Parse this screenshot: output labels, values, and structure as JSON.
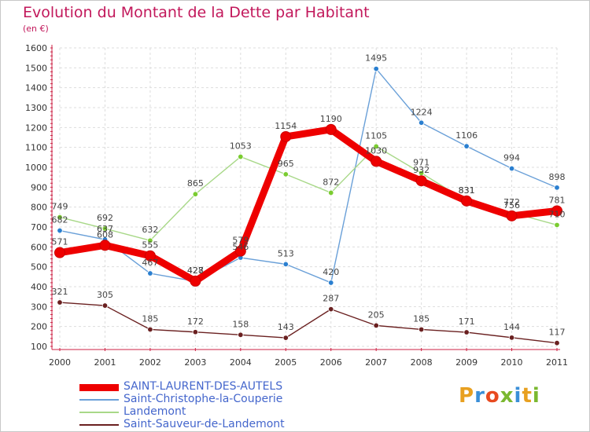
{
  "title": "Evolution du Montant de la Dette par Habitant",
  "unit": "(en €)",
  "logo": "Proxiti",
  "logo_colors": [
    "#e8a020",
    "#3a8fd8",
    "#e84a20",
    "#7ab830",
    "#3a8fd8",
    "#e8a020",
    "#7ab830"
  ],
  "chart_data": {
    "type": "line",
    "title": "Evolution du Montant de la Dette par Habitant",
    "ylabel": "(en €)",
    "xlabel": "",
    "x": [
      "2000",
      "2001",
      "2002",
      "2003",
      "2004",
      "2005",
      "2006",
      "2007",
      "2008",
      "2009",
      "2010",
      "2011"
    ],
    "ylim": [
      100,
      1600
    ],
    "yticks": [
      "100",
      "200",
      "300",
      "400",
      "500",
      "600",
      "700",
      "800",
      "900",
      "1000",
      "1100",
      "1200",
      "1300",
      "1400",
      "1500",
      "1600"
    ],
    "grid": true,
    "legend_position": "bottom-left",
    "series": [
      {
        "name": "SAINT-LAURENT-DES-AUTELS",
        "color": "#ee0000",
        "marker": "#ee0000",
        "bold": true,
        "values": [
          571,
          608,
          555,
          428,
          579,
          1154,
          1190,
          1030,
          932,
          831,
          756,
          781
        ],
        "labels": [
          "571",
          "608",
          "555",
          "428",
          "579",
          "1154",
          "1190",
          "1030",
          "932",
          "831",
          "756",
          "781"
        ]
      },
      {
        "name": "Saint-Christophe-la-Couperie",
        "color": "#6aa0d8",
        "marker": "#2a7fd0",
        "bold": false,
        "values": [
          682,
          637,
          467,
          427,
          546,
          513,
          420,
          1495,
          1224,
          1106,
          994,
          898
        ],
        "labels": [
          "682",
          "637",
          "467",
          "427",
          "546",
          "513",
          "420",
          "1495",
          "1224",
          "1106",
          "994",
          "898"
        ]
      },
      {
        "name": "Landemont",
        "color": "#a8d888",
        "marker": "#7acc30",
        "bold": false,
        "values": [
          749,
          692,
          632,
          865,
          1053,
          965,
          872,
          1105,
          971,
          831,
          772,
          710
        ],
        "labels": [
          "749",
          "692",
          "632",
          "865",
          "1053",
          "965",
          "872",
          "1105",
          "971",
          "831",
          "772",
          "710"
        ]
      },
      {
        "name": "Saint-Sauveur-de-Landemont",
        "color": "#6a2020",
        "marker": "#6a2020",
        "bold": false,
        "values": [
          321,
          305,
          185,
          172,
          158,
          143,
          287,
          205,
          185,
          171,
          144,
          117
        ],
        "labels": [
          "321",
          "305",
          "185",
          "172",
          "158",
          "143",
          "287",
          "205",
          "185",
          "171",
          "144",
          "117"
        ]
      }
    ]
  }
}
